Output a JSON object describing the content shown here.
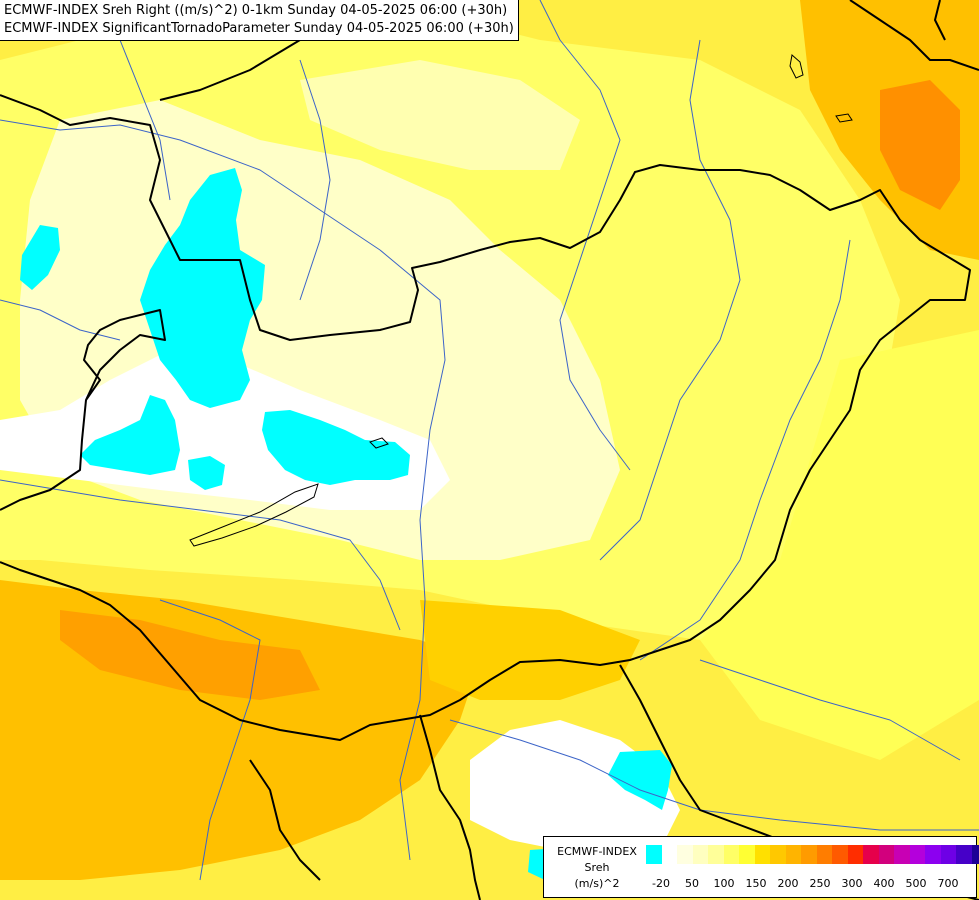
{
  "title": {
    "line1": "ECMWF-INDEX Sreh Right ((m/s)^2) 0-1km Sunday 04-05-2025 06:00 (+30h)",
    "line2": "ECMWF-INDEX SignificantTornadoParameter Sunday 04-05-2025 06:00 (+30h)"
  },
  "legend": {
    "source": "ECMWF-INDEX",
    "variable": "Sreh",
    "unit": "(m/s)^2",
    "colors": [
      "#00ffff",
      "#ffffff",
      "#ffffe0",
      "#ffffc0",
      "#ffff99",
      "#ffff66",
      "#ffff33",
      "#ffe000",
      "#ffc800",
      "#ffb400",
      "#ff9b00",
      "#ff7d00",
      "#ff5a00",
      "#ff2d00",
      "#e6004b",
      "#d2007d",
      "#c800b4",
      "#b400dc",
      "#8c00f0",
      "#6e00e6",
      "#4600c8",
      "#1e0096",
      "#000078"
    ],
    "ticks": [
      "-20",
      "50",
      "100",
      "150",
      "200",
      "250",
      "300",
      "400",
      "500",
      "700"
    ]
  },
  "palette": {
    "pale": "#ffffc8",
    "yellow": "#ffff66",
    "gold": "#ffe600",
    "amber": "#ffc800",
    "orange": "#ffa000",
    "dark_orange": "#ff8c00",
    "cyan": "#00ffff",
    "white": "#ffffff",
    "border": "#000000",
    "river": "#3c64c8"
  }
}
